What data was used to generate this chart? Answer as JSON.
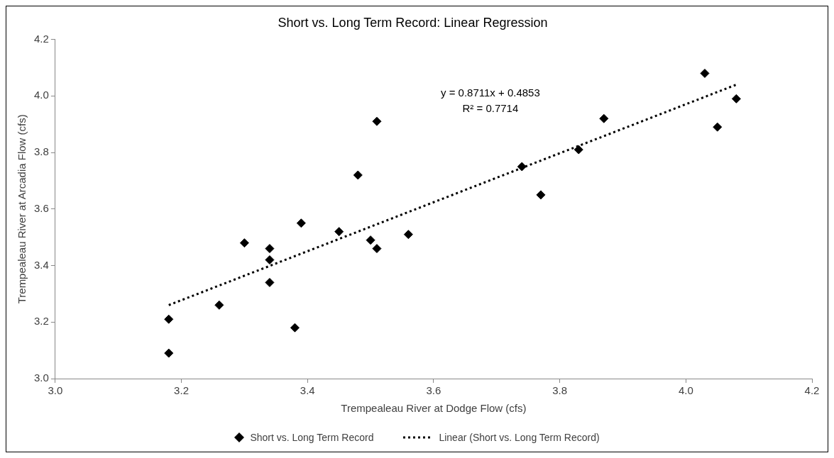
{
  "chart_data": {
    "type": "scatter",
    "title": "Short vs. Long Term Record: Linear Regression",
    "xlabel": "Trempealeau River at Dodge Flow (cfs)",
    "ylabel": "Trempealeau River at Arcadia Flow (cfs)",
    "annotations": [
      "y = 0.8711x + 0.4853",
      "R² = 0.7714"
    ],
    "xlim": [
      3.0,
      4.2
    ],
    "xticks": [
      {
        "value": 3.0,
        "label": "3.0"
      },
      {
        "value": 3.2,
        "label": "3.2"
      },
      {
        "value": 3.4,
        "label": "3.4"
      },
      {
        "value": 3.6,
        "label": "3.6"
      },
      {
        "value": 3.8,
        "label": "3.8"
      },
      {
        "value": 4.0,
        "label": "4.0"
      },
      {
        "value": 4.2,
        "label": "4.2"
      }
    ],
    "ylim": [
      3.0,
      4.2
    ],
    "yticks": [
      {
        "value": 3.0,
        "label": "3.0"
      },
      {
        "value": 3.2,
        "label": "3.2"
      },
      {
        "value": 3.4,
        "label": "3.4"
      },
      {
        "value": 3.6,
        "label": "3.6"
      },
      {
        "value": 3.8,
        "label": "3.8"
      },
      {
        "value": 4.0,
        "label": "4.0"
      },
      {
        "value": 4.2,
        "label": "4.2"
      }
    ],
    "grid": false,
    "legend": "bottom",
    "series": [
      {
        "name": "Short vs. Long Term Record",
        "marker": "diamond",
        "color": "#000000",
        "x": [
          3.18,
          3.18,
          3.26,
          3.3,
          3.34,
          3.34,
          3.34,
          3.39,
          3.38,
          3.45,
          3.48,
          3.5,
          3.51,
          3.51,
          3.56,
          3.74,
          3.77,
          3.83,
          3.87,
          4.03,
          4.05,
          4.08
        ],
        "values": [
          3.21,
          3.09,
          3.26,
          3.48,
          3.42,
          3.46,
          3.34,
          3.55,
          3.18,
          3.52,
          3.72,
          3.49,
          3.91,
          3.46,
          3.51,
          3.75,
          3.65,
          3.81,
          3.92,
          4.08,
          3.89,
          3.99
        ]
      },
      {
        "name": "Linear (Short vs. Long Term Record)",
        "type": "line",
        "marker": "none",
        "line_style": "dotted",
        "color": "#000000",
        "x": [
          3.18,
          4.08
        ],
        "values": [
          3.26,
          4.04
        ]
      }
    ]
  }
}
